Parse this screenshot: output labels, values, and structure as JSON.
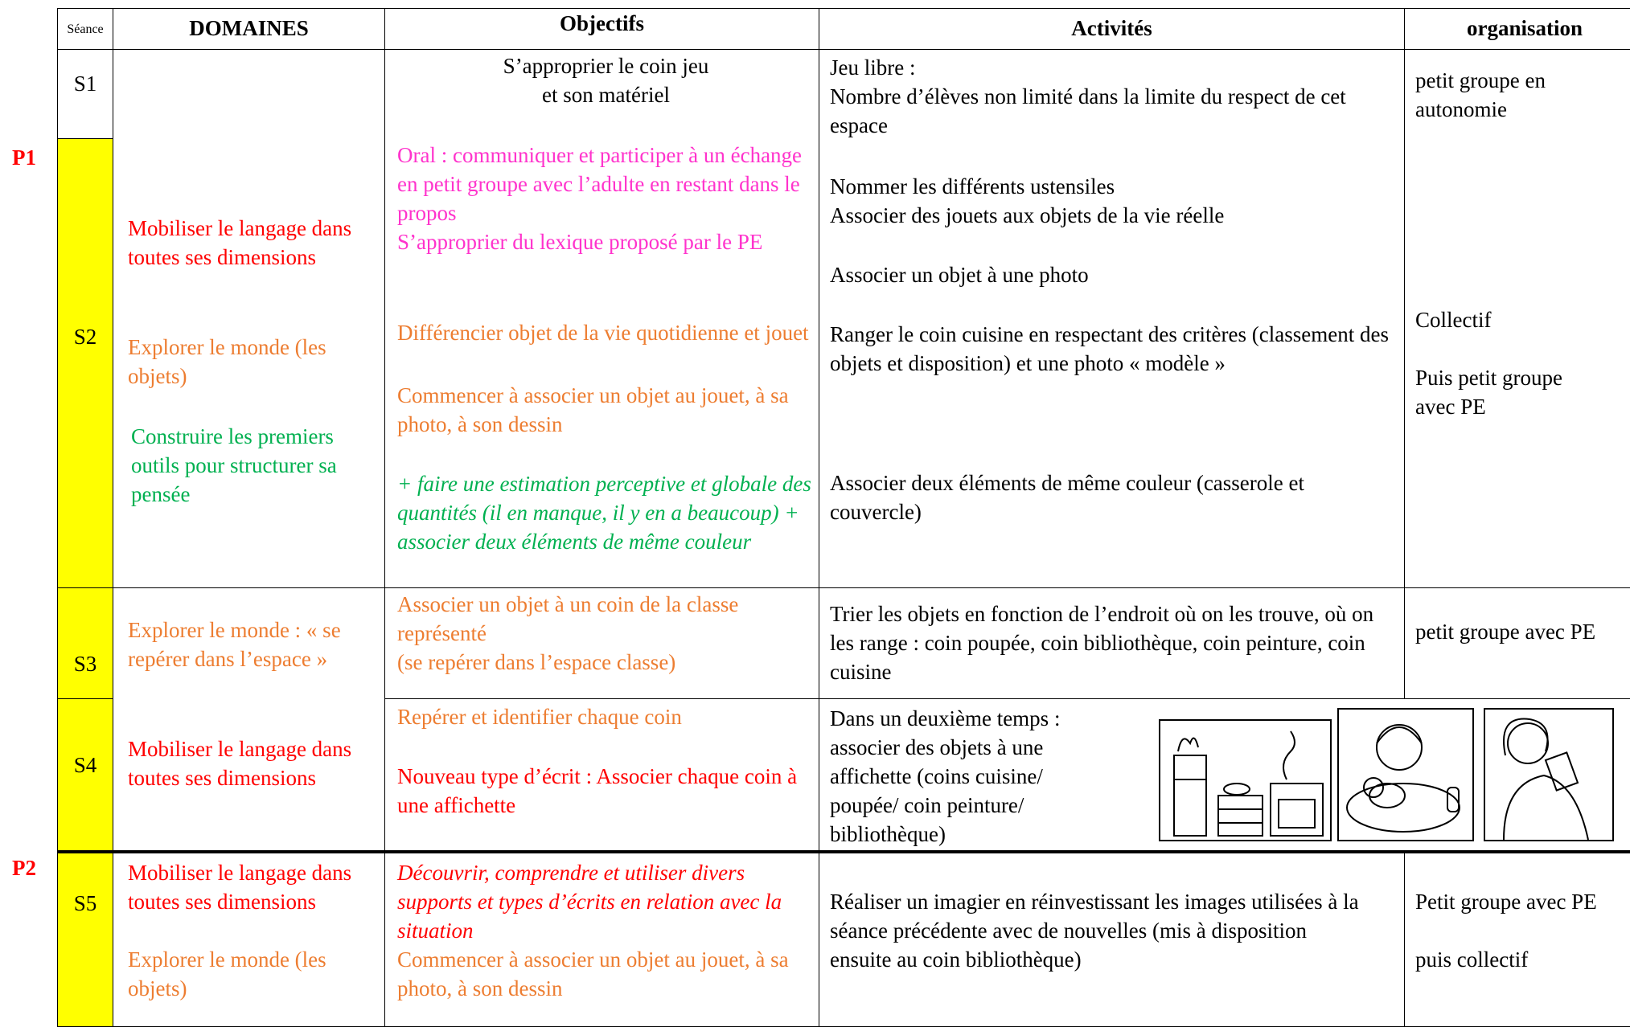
{
  "periods": [
    "P1",
    "P2"
  ],
  "table": {
    "headers": [
      "Séance",
      "DOMAINES",
      "Objectifs",
      "Activités",
      "organisation"
    ],
    "rows": [
      {
        "seances": [
          "S1",
          "S2"
        ],
        "domaines": [
          "Mobiliser le langage dans toutes ses dimensions",
          "Explorer le monde (les objets)",
          "Construire les premiers outils pour structurer sa pensée"
        ],
        "objectifs": [
          "S’approprier le coin jeu",
          "et son matériel",
          "Oral : communiquer et participer à un échange en petit groupe avec l’adulte en restant dans le propos",
          "S’approprier du lexique proposé par le PE",
          "Différencier objet de la vie quotidienne et jouet",
          "Commencer à associer un objet au jouet, à sa photo, à son dessin",
          "+ faire une estimation perceptive et globale des quantités (il en manque, il y en a beaucoup) + associer deux éléments de même couleur"
        ],
        "activites": [
          "Jeu libre :",
          "Nombre d’élèves non limité dans la limite du respect de cet espace",
          "Nommer les différents ustensiles",
          "Associer des jouets aux objets de la vie réelle",
          "Associer un objet à une photo",
          "Ranger le coin cuisine en respectant des critères (classement des objets et disposition) et une photo « modèle »",
          "Associer deux éléments de même couleur (casserole et couvercle)"
        ],
        "organisation": [
          "petit groupe en autonomie",
          "Collectif",
          "Puis petit groupe avec PE"
        ]
      },
      {
        "seance": "S3",
        "domaines": [
          "Explorer le monde : « se repérer dans l’espace »",
          "Mobiliser le langage dans toutes ses dimensions"
        ],
        "objectifs": [
          "Associer un objet à un coin de la classe représenté",
          "(se repérer dans l’espace classe)"
        ],
        "activites": [
          "Trier les objets en fonction de l’endroit où on les trouve, où on les range : coin poupée, coin bibliothèque, coin peinture, coin cuisine"
        ],
        "organisation": [
          "petit groupe avec PE"
        ]
      },
      {
        "seance": "S4",
        "objectifs": [
          "Repérer et identifier chaque coin",
          "Nouveau type d’écrit : Associer chaque coin à une affichette"
        ],
        "activites": [
          "Dans un deuxième temps : associer des objets à une affichette (coins cuisine/ poupée/ coin peinture/ bibliothèque)"
        ]
      },
      {
        "seance": "S5",
        "domaines": [
          "Mobiliser le langage dans toutes ses dimensions",
          "Explorer le monde (les objets)"
        ],
        "objectifs": [
          "Découvrir, comprendre et utiliser divers supports et types  d’écrits en relation avec la situation",
          "Commencer à associer un objet au jouet, à sa photo, à son dessin"
        ],
        "activites": [
          "Réaliser un imagier en réinvestissant les images utilisées à la séance précédente avec de nouvelles (mis à disposition ensuite au coin bibliothèque)"
        ],
        "organisation": [
          "Petit groupe avec PE",
          "puis collectif"
        ]
      }
    ]
  }
}
